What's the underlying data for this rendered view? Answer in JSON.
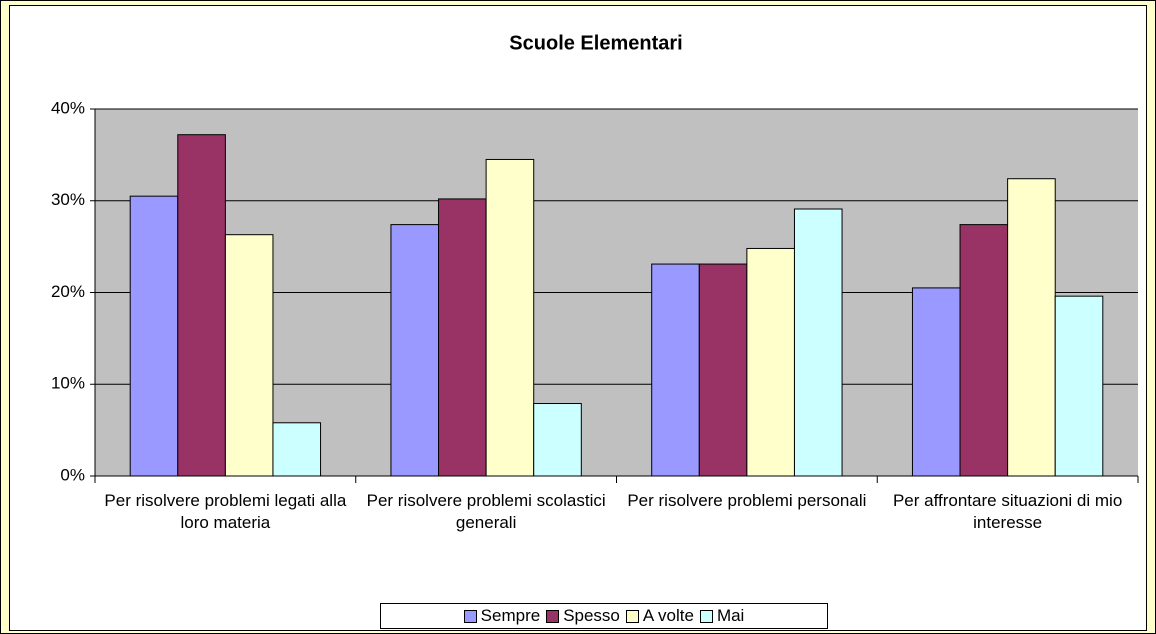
{
  "chart_data": {
    "type": "bar",
    "title": "Scuole Elementari",
    "categories": [
      "Per risolvere problemi legati alla loro materia",
      "Per risolvere problemi scolastici generali",
      "Per risolvere problemi personali",
      "Per affrontare situazioni di mio interesse"
    ],
    "series": [
      {
        "name": "Sempre",
        "color": "#9999ff",
        "values": [
          30.5,
          27.4,
          23.1,
          20.5
        ]
      },
      {
        "name": "Spesso",
        "color": "#993366",
        "values": [
          37.2,
          30.2,
          23.1,
          27.4
        ]
      },
      {
        "name": "A volte",
        "color": "#ffffcc",
        "values": [
          26.3,
          34.5,
          24.8,
          32.4
        ]
      },
      {
        "name": "Mai",
        "color": "#ccffff",
        "values": [
          5.8,
          7.9,
          29.1,
          19.6
        ]
      }
    ],
    "ylim": [
      0,
      40
    ],
    "yticks": [
      {
        "value": 0,
        "label": "0%"
      },
      {
        "value": 10,
        "label": "10%"
      },
      {
        "value": 20,
        "label": "20%"
      },
      {
        "value": 30,
        "label": "30%"
      },
      {
        "value": 40,
        "label": "40%"
      }
    ],
    "grid": true,
    "legend": "bottom"
  }
}
